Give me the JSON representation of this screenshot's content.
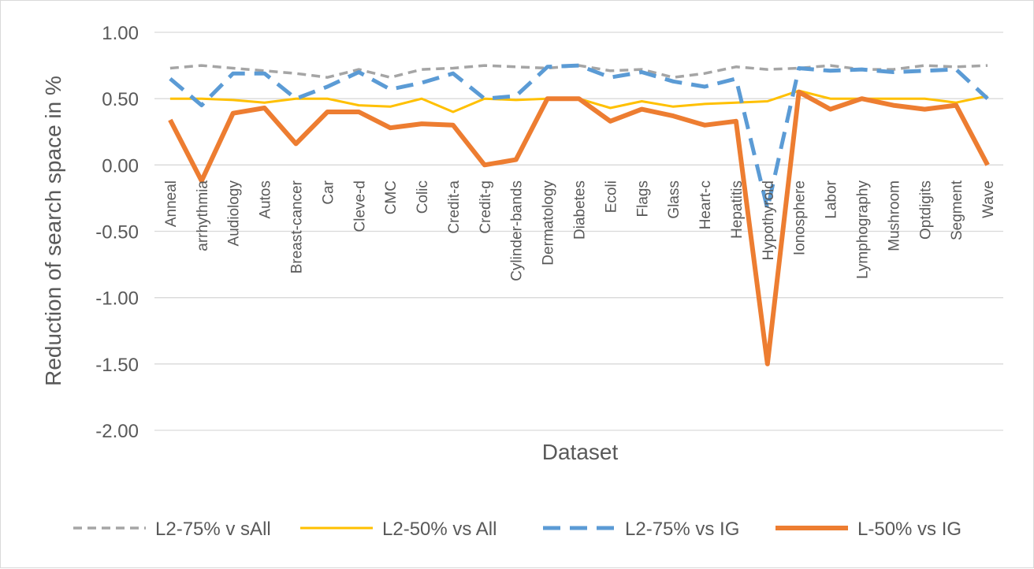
{
  "chart_data": {
    "type": "line",
    "title": "",
    "xlabel": "Dataset",
    "ylabel": "Reduction of search space  in %",
    "ylim": [
      -2.0,
      1.0
    ],
    "ytick_step": 0.5,
    "ytick_decimals": 2,
    "grid": true,
    "legend_position": "bottom",
    "categories": [
      "Anneal",
      "arrhythmia",
      "Audiology",
      "Autos",
      "Breast-cancer",
      "Car",
      "Cleve-d",
      "CMC",
      "Colic",
      "Credit-a",
      "Credit-g",
      "Cylinder-bands",
      "Dermatology",
      "Diabetes",
      "Ecoli",
      "Flags",
      "Glass",
      "Heart-c",
      "Hepatitis",
      "Hypothyroid",
      "Ionosphere",
      "Labor",
      "Lymphography",
      "Mushroom",
      "Optdigits",
      "Segment",
      "Wave"
    ],
    "series": [
      {
        "name": "L2-75% v sAll",
        "color": "#a5a5a5",
        "style": "dashed-thin",
        "values": [
          0.73,
          0.75,
          0.73,
          0.71,
          0.69,
          0.66,
          0.72,
          0.66,
          0.72,
          0.73,
          0.75,
          0.74,
          0.73,
          0.75,
          0.71,
          0.72,
          0.66,
          0.69,
          0.74,
          0.72,
          0.73,
          0.75,
          0.72,
          0.72,
          0.75,
          0.74,
          0.75
        ]
      },
      {
        "name": "L2-50% vs All",
        "color": "#ffc000",
        "style": "solid-thin",
        "values": [
          0.5,
          0.5,
          0.49,
          0.47,
          0.5,
          0.5,
          0.45,
          0.44,
          0.5,
          0.4,
          0.5,
          0.49,
          0.5,
          0.5,
          0.43,
          0.48,
          0.44,
          0.46,
          0.47,
          0.48,
          0.56,
          0.5,
          0.5,
          0.5,
          0.5,
          0.47,
          0.52
        ]
      },
      {
        "name": "L2-75% vs IG",
        "color": "#5b9bd5",
        "style": "dashed-thick",
        "values": [
          0.65,
          0.45,
          0.69,
          0.69,
          0.5,
          0.59,
          0.7,
          0.57,
          0.62,
          0.69,
          0.5,
          0.52,
          0.74,
          0.75,
          0.66,
          0.7,
          0.63,
          0.59,
          0.65,
          -0.33,
          0.73,
          0.71,
          0.72,
          0.7,
          0.71,
          0.72,
          0.5
        ]
      },
      {
        "name": "L-50% vs IG",
        "color": "#ed7d31",
        "style": "solid-thick",
        "values": [
          0.34,
          -0.12,
          0.39,
          0.43,
          0.16,
          0.4,
          0.4,
          0.28,
          0.31,
          0.3,
          0.0,
          0.04,
          0.5,
          0.5,
          0.33,
          0.42,
          0.37,
          0.3,
          0.33,
          -1.5,
          0.55,
          0.42,
          0.5,
          0.45,
          0.42,
          0.45,
          0.0
        ]
      }
    ]
  }
}
